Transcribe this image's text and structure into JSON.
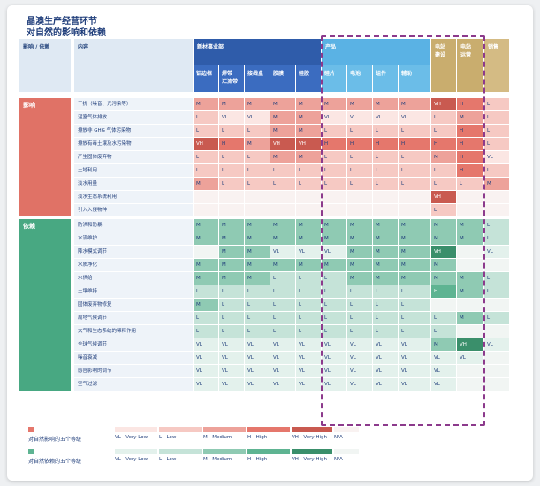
{
  "title": [
    "晶澳生产经营环节",
    "对自然的影响和依赖"
  ],
  "header": {
    "col_label": "影响 / 依赖",
    "content_label": "内容",
    "groups": [
      {
        "label": "新材事业部",
        "sub": [
          "铝边框",
          "焊带\n汇流带",
          "接线盒",
          "胶膜",
          "硅胶"
        ]
      },
      {
        "label": "产品",
        "sub": [
          "硅片",
          "电池",
          "组件",
          "辅助"
        ]
      },
      {
        "label": "电站\n建设",
        "sub": []
      },
      {
        "label": "电站\n运营",
        "sub": []
      },
      {
        "label": "销售",
        "sub": []
      }
    ]
  },
  "sections": [
    {
      "name": "影响",
      "rows": [
        {
          "name": "干扰（噪音、光污染等）",
          "v": [
            "M",
            "M",
            "M",
            "M",
            "M",
            "M",
            "M",
            "M",
            "M",
            "VH",
            "H",
            "L"
          ]
        },
        {
          "name": "温室气体排放",
          "v": [
            "L",
            "VL",
            "VL",
            "M",
            "M",
            "VL",
            "VL",
            "VL",
            "VL",
            "L",
            "M",
            "L"
          ]
        },
        {
          "name": "排放非 GHG 气体污染物",
          "v": [
            "L",
            "L",
            "L",
            "M",
            "M",
            "L",
            "L",
            "L",
            "L",
            "L",
            "H",
            "L"
          ]
        },
        {
          "name": "排放有毒土壤及水污染物",
          "v": [
            "VH",
            "H",
            "M",
            "VH",
            "VH",
            "H",
            "H",
            "H",
            "H",
            "H",
            "H",
            "L"
          ]
        },
        {
          "name": "产生固体废弃物",
          "v": [
            "L",
            "L",
            "L",
            "M",
            "M",
            "L",
            "L",
            "L",
            "L",
            "M",
            "H",
            "VL"
          ]
        },
        {
          "name": "土地利用",
          "v": [
            "L",
            "L",
            "L",
            "L",
            "L",
            "L",
            "L",
            "L",
            "L",
            "L",
            "H",
            "L"
          ]
        },
        {
          "name": "淡水用量",
          "v": [
            "M",
            "L",
            "L",
            "L",
            "L",
            "L",
            "L",
            "L",
            "L",
            "L",
            "L",
            "M"
          ]
        },
        {
          "name": "淡水生态系统利用",
          "v": [
            "",
            "",
            "",
            "",
            "",
            "",
            "",
            "",
            "",
            "VH",
            "",
            ""
          ]
        },
        {
          "name": "引入入侵物种",
          "v": [
            "",
            "",
            "",
            "",
            "",
            "",
            "",
            "",
            "",
            "L",
            "",
            ""
          ]
        }
      ]
    },
    {
      "name": "依赖",
      "rows": [
        {
          "name": "防洪和防暴",
          "v": [
            "M",
            "M",
            "M",
            "M",
            "M",
            "M",
            "M",
            "M",
            "M",
            "M",
            "M",
            "L"
          ]
        },
        {
          "name": "水流维护",
          "v": [
            "M",
            "M",
            "M",
            "M",
            "M",
            "M",
            "M",
            "M",
            "M",
            "M",
            "M",
            "L"
          ]
        },
        {
          "name": "降水模式调节",
          "v": [
            "",
            "M",
            "M",
            "VL",
            "VL",
            "VL",
            "M",
            "M",
            "M",
            "VH",
            "",
            "VL"
          ]
        },
        {
          "name": "水质净化",
          "v": [
            "M",
            "M",
            "M",
            "M",
            "M",
            "M",
            "M",
            "M",
            "M",
            "M",
            "",
            ""
          ]
        },
        {
          "name": "水供给",
          "v": [
            "M",
            "M",
            "M",
            "L",
            "L",
            "L",
            "M",
            "M",
            "M",
            "M",
            "M",
            "L"
          ]
        },
        {
          "name": "土壤维持",
          "v": [
            "L",
            "L",
            "L",
            "L",
            "L",
            "L",
            "L",
            "L",
            "L",
            "H",
            "M",
            "L"
          ]
        },
        {
          "name": "固体废弃物修复",
          "v": [
            "M",
            "L",
            "L",
            "L",
            "L",
            "L",
            "L",
            "L",
            "L",
            "",
            "",
            ""
          ]
        },
        {
          "name": "局地气候调节",
          "v": [
            "L",
            "L",
            "L",
            "L",
            "L",
            "L",
            "L",
            "L",
            "L",
            "L",
            "M",
            "L"
          ]
        },
        {
          "name": "大气和生态系统的稀释作用",
          "v": [
            "L",
            "L",
            "L",
            "L",
            "L",
            "L",
            "L",
            "L",
            "L",
            "L",
            "",
            ""
          ]
        },
        {
          "name": "全球气候调节",
          "v": [
            "VL",
            "VL",
            "VL",
            "VL",
            "VL",
            "VL",
            "VL",
            "VL",
            "VL",
            "M",
            "VH",
            "VL"
          ]
        },
        {
          "name": "噪音衰减",
          "v": [
            "VL",
            "VL",
            "VL",
            "VL",
            "VL",
            "VL",
            "VL",
            "VL",
            "VL",
            "VL",
            "VL",
            ""
          ]
        },
        {
          "name": "感官影响的调节",
          "v": [
            "VL",
            "VL",
            "VL",
            "VL",
            "VL",
            "VL",
            "VL",
            "VL",
            "VL",
            "VL",
            "",
            ""
          ]
        },
        {
          "name": "空气过滤",
          "v": [
            "VL",
            "VL",
            "VL",
            "VL",
            "VL",
            "VL",
            "VL",
            "VL",
            "VL",
            "VL",
            "",
            ""
          ]
        }
      ]
    }
  ],
  "legend": {
    "impact_label": "对自然影响的五个等级",
    "dependency_label": "对自然依赖的五个等级",
    "levels": [
      "VL - Very Low",
      "L - Low",
      "M - Medium",
      "H - High",
      "VH - Very High",
      "N/A"
    ]
  },
  "colors": {
    "impact": {
      "VL": "#fbe6e3",
      "L": "#f6c9c3",
      "M": "#eda29a",
      "H": "#e5776c",
      "VH": "#c95a50",
      "": "#f9f2f1"
    },
    "dependency": {
      "VL": "#e3f1ec",
      "L": "#c5e3d8",
      "M": "#8fcab3",
      "H": "#5eb492",
      "VH": "#3a8f6b",
      "": "#f1f5f3"
    }
  }
}
